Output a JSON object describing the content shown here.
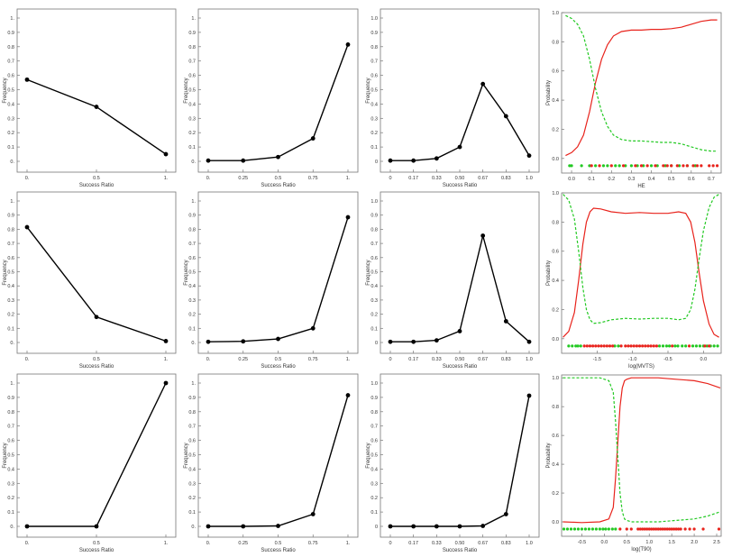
{
  "chart_data": [
    {
      "type": "line",
      "xlabel": "Success Ratio",
      "ylabel": "Frequency",
      "categories": [
        "0.",
        "0.5",
        "1."
      ],
      "values": [
        0.57,
        0.38,
        0.05
      ],
      "yticks": [
        "0.",
        "0.1",
        "0.2",
        "0.3",
        "0.4",
        "0.5",
        "0.6",
        "0.7",
        "0.8",
        "0.9",
        "1."
      ],
      "ylim": [
        0,
        1
      ]
    },
    {
      "type": "line",
      "xlabel": "Success Ratio",
      "ylabel": "Frequency",
      "categories": [
        "0.",
        "0.25",
        "0.5",
        "0.75",
        "1."
      ],
      "values": [
        0.005,
        0.005,
        0.03,
        0.16,
        0.815
      ],
      "yticks": [
        "0.",
        "0.1",
        "0.2",
        "0.3",
        "0.4",
        "0.5",
        "0.6",
        "0.7",
        "0.8",
        "0.9",
        "1."
      ],
      "ylim": [
        0,
        1
      ]
    },
    {
      "type": "line",
      "xlabel": "Success Ratio",
      "ylabel": "Frequency",
      "categories": [
        "0",
        "0.17",
        "0.33",
        "0.50",
        "0.67",
        "0.83",
        "1.0"
      ],
      "values": [
        0.005,
        0.005,
        0.02,
        0.1,
        0.54,
        0.315,
        0.04
      ],
      "yticks": [
        "0",
        "0.1",
        "0.2",
        "0.3",
        "0.4",
        "0.5",
        "0.6",
        "0.7",
        "0.8",
        "0.9",
        "1.0"
      ],
      "ylim": [
        0,
        1
      ]
    },
    {
      "type": "line",
      "xlabel": "HE",
      "ylabel": "Probability",
      "xlim": [
        -0.05,
        0.75
      ],
      "ylim": [
        -0.1,
        1.0
      ],
      "xticks": [
        0.0,
        0.1,
        0.2,
        0.3,
        0.4,
        0.5,
        0.6,
        0.7
      ],
      "xticklabels": [
        "0.0",
        "0.1",
        "0.2",
        "0.3",
        "0.4",
        "0.5",
        "0.6",
        "0.7"
      ],
      "yticks": [
        0.0,
        0.2,
        0.4,
        0.6,
        0.8,
        1.0
      ],
      "yticklabels": [
        "0.0",
        "0.2",
        "0.4",
        "0.6",
        "0.8",
        "1.0"
      ],
      "series": [
        {
          "style": "solid",
          "color": "#e8231c",
          "x": [
            -0.03,
            0.0,
            0.03,
            0.06,
            0.09,
            0.12,
            0.15,
            0.18,
            0.21,
            0.25,
            0.3,
            0.35,
            0.4,
            0.45,
            0.5,
            0.55,
            0.6,
            0.65,
            0.7,
            0.73
          ],
          "y": [
            0.02,
            0.04,
            0.08,
            0.16,
            0.32,
            0.52,
            0.68,
            0.78,
            0.84,
            0.87,
            0.88,
            0.88,
            0.885,
            0.885,
            0.89,
            0.9,
            0.92,
            0.94,
            0.95,
            0.95
          ]
        },
        {
          "style": "dashed",
          "color": "#22c922",
          "x": [
            -0.03,
            0.0,
            0.03,
            0.06,
            0.09,
            0.12,
            0.15,
            0.18,
            0.21,
            0.25,
            0.3,
            0.35,
            0.4,
            0.45,
            0.5,
            0.55,
            0.6,
            0.65,
            0.7,
            0.73
          ],
          "y": [
            0.98,
            0.96,
            0.92,
            0.84,
            0.68,
            0.48,
            0.32,
            0.22,
            0.16,
            0.13,
            0.12,
            0.12,
            0.115,
            0.11,
            0.11,
            0.1,
            0.08,
            0.06,
            0.05,
            0.05
          ]
        }
      ],
      "rug": {
        "y": -0.05,
        "green": [
          -0.01,
          0.0,
          0.05,
          0.09,
          0.12,
          0.16,
          0.18,
          0.22,
          0.24,
          0.27,
          0.3,
          0.33,
          0.36,
          0.4,
          0.43,
          0.47,
          0.5,
          0.54,
          0.58,
          0.62
        ],
        "red": [
          0.1,
          0.14,
          0.2,
          0.26,
          0.32,
          0.35,
          0.38,
          0.42,
          0.46,
          0.48,
          0.5,
          0.53,
          0.56,
          0.58,
          0.61,
          0.63,
          0.65,
          0.69,
          0.71,
          0.73
        ]
      }
    },
    {
      "type": "line",
      "xlabel": "Success Ratio",
      "ylabel": "Frequency",
      "categories": [
        "0.",
        "0.5",
        "1."
      ],
      "values": [
        0.815,
        0.18,
        0.01
      ],
      "yticks": [
        "0.",
        "0.1",
        "0.2",
        "0.3",
        "0.4",
        "0.5",
        "0.6",
        "0.7",
        "0.8",
        "0.9",
        "1."
      ],
      "ylim": [
        0,
        1
      ]
    },
    {
      "type": "line",
      "xlabel": "Success Ratio",
      "ylabel": "Frequency",
      "categories": [
        "0.",
        "0.25",
        "0.5",
        "0.75",
        "1."
      ],
      "values": [
        0.005,
        0.008,
        0.025,
        0.1,
        0.885
      ],
      "yticks": [
        "0.",
        "0.1",
        "0.2",
        "0.3",
        "0.4",
        "0.5",
        "0.6",
        "0.7",
        "0.8",
        "0.9",
        "1."
      ],
      "ylim": [
        0,
        1
      ]
    },
    {
      "type": "line",
      "xlabel": "Success Ratio",
      "ylabel": "Frequency",
      "categories": [
        "0",
        "0.17",
        "0.33",
        "0.50",
        "0.67",
        "0.83",
        "1.0"
      ],
      "values": [
        0.005,
        0.005,
        0.015,
        0.08,
        0.755,
        0.15,
        0.005
      ],
      "yticks": [
        "0",
        "0.1",
        "0.2",
        "0.3",
        "0.4",
        "0.5",
        "0.6",
        "0.7",
        "0.8",
        "0.9",
        "1.0"
      ],
      "ylim": [
        0,
        1
      ]
    },
    {
      "type": "line",
      "xlabel": "log(MVTS)",
      "ylabel": "Probability",
      "xlim": [
        -2.0,
        0.25
      ],
      "ylim": [
        -0.1,
        1.0
      ],
      "xticks": [
        -1.5,
        -1.0,
        -0.5,
        0.0
      ],
      "xticklabels": [
        "-1.5",
        "-1.0",
        "-0.5",
        "0.0"
      ],
      "yticks": [
        0.0,
        0.2,
        0.4,
        0.6,
        0.8,
        1.0
      ],
      "yticklabels": [
        "0.0",
        "0.2",
        "0.4",
        "0.6",
        "0.8",
        "1.0"
      ],
      "series": [
        {
          "style": "solid",
          "color": "#e8231c",
          "x": [
            -1.98,
            -1.9,
            -1.82,
            -1.76,
            -1.7,
            -1.65,
            -1.6,
            -1.55,
            -1.45,
            -1.3,
            -1.1,
            -0.9,
            -0.7,
            -0.5,
            -0.35,
            -0.25,
            -0.18,
            -0.12,
            -0.06,
            0.0,
            0.08,
            0.15,
            0.22
          ],
          "y": [
            0.01,
            0.05,
            0.18,
            0.4,
            0.65,
            0.8,
            0.87,
            0.895,
            0.89,
            0.87,
            0.86,
            0.865,
            0.86,
            0.86,
            0.87,
            0.86,
            0.8,
            0.66,
            0.45,
            0.26,
            0.1,
            0.03,
            0.01
          ]
        },
        {
          "style": "dashed",
          "color": "#22c922",
          "x": [
            -1.98,
            -1.9,
            -1.82,
            -1.76,
            -1.7,
            -1.65,
            -1.6,
            -1.55,
            -1.45,
            -1.3,
            -1.1,
            -0.9,
            -0.7,
            -0.5,
            -0.35,
            -0.25,
            -0.18,
            -0.12,
            -0.06,
            0.0,
            0.08,
            0.15,
            0.22
          ],
          "y": [
            0.99,
            0.95,
            0.82,
            0.6,
            0.35,
            0.2,
            0.13,
            0.105,
            0.11,
            0.13,
            0.14,
            0.135,
            0.14,
            0.14,
            0.13,
            0.14,
            0.2,
            0.34,
            0.55,
            0.74,
            0.9,
            0.97,
            0.99
          ]
        }
      ],
      "rug": {
        "y": -0.05,
        "green": [
          -1.9,
          -1.85,
          -1.8,
          -1.77,
          -1.73,
          -1.25,
          -1.2,
          -0.62,
          -0.57,
          -0.52,
          -0.48,
          -0.4,
          -0.36,
          -0.3,
          -0.25,
          -0.15,
          -0.1,
          -0.05,
          0.0,
          0.05,
          0.1,
          0.15,
          0.2
        ],
        "red": [
          -1.68,
          -1.64,
          -1.6,
          -1.56,
          -1.52,
          -1.48,
          -1.44,
          -1.4,
          -1.36,
          -1.32,
          -1.28,
          -1.16,
          -1.1,
          -1.06,
          -1.02,
          -0.98,
          -0.94,
          -0.9,
          -0.86,
          -0.82,
          -0.78,
          -0.74,
          -0.7,
          -0.66,
          -0.44,
          -0.2,
          0.02,
          0.08
        ]
      }
    },
    {
      "type": "line",
      "xlabel": "Success Ratio",
      "ylabel": "Frequency",
      "categories": [
        "0.",
        "0.5",
        "1."
      ],
      "values": [
        0.0,
        0.0,
        1.0
      ],
      "yticks": [
        "0.",
        "0.1",
        "0.2",
        "0.3",
        "0.4",
        "0.5",
        "0.6",
        "0.7",
        "0.8",
        "0.9",
        "1."
      ],
      "ylim": [
        0,
        1
      ]
    },
    {
      "type": "line",
      "xlabel": "Success Ratio",
      "ylabel": "Frequency",
      "categories": [
        "0.",
        "0.25",
        "0.5",
        "0.75",
        "1."
      ],
      "values": [
        0.0,
        0.0,
        0.003,
        0.085,
        0.915
      ],
      "yticks": [
        "0.",
        "0.1",
        "0.2",
        "0.3",
        "0.4",
        "0.5",
        "0.6",
        "0.7",
        "0.8",
        "0.9",
        "1."
      ],
      "ylim": [
        0,
        1
      ]
    },
    {
      "type": "line",
      "xlabel": "Success Ratio",
      "ylabel": "Frequency",
      "categories": [
        "0",
        "0.17",
        "0.33",
        "0.50",
        "0.67",
        "0.83",
        "1.0"
      ],
      "values": [
        0.0,
        0.0,
        0.0,
        0.0,
        0.003,
        0.085,
        0.912
      ],
      "yticks": [
        "0",
        "0.1",
        "0.2",
        "0.3",
        "0.4",
        "0.5",
        "0.6",
        "0.7",
        "0.8",
        "0.9",
        "1.0"
      ],
      "ylim": [
        0,
        1
      ]
    },
    {
      "type": "line",
      "xlabel": "log(T90)",
      "ylabel": "Probability",
      "xlim": [
        -0.95,
        2.6
      ],
      "ylim": [
        -0.1,
        1.02
      ],
      "xticks": [
        -0.5,
        0.0,
        0.5,
        1.0,
        1.5,
        2.0,
        2.5
      ],
      "xticklabels": [
        "-0.5",
        "0.0",
        "0.5",
        "1.0",
        "1.5",
        "2.0",
        "2.5"
      ],
      "yticks": [
        0.0,
        0.2,
        0.4,
        0.6,
        0.8,
        1.0
      ],
      "yticklabels": [
        "0.0",
        "0.2",
        "0.4",
        "0.6",
        "0.8",
        "1.0"
      ],
      "series": [
        {
          "style": "solid",
          "color": "#e8231c",
          "x": [
            -0.92,
            -0.5,
            -0.1,
            0.1,
            0.2,
            0.25,
            0.3,
            0.35,
            0.4,
            0.45,
            0.5,
            0.6,
            0.8,
            1.2,
            1.6,
            2.0,
            2.3,
            2.58
          ],
          "y": [
            0.0,
            -0.005,
            0.0,
            0.02,
            0.1,
            0.3,
            0.55,
            0.8,
            0.93,
            0.98,
            0.99,
            1.0,
            1.0,
            1.0,
            0.99,
            0.98,
            0.96,
            0.93
          ]
        },
        {
          "style": "dashed",
          "color": "#22c922",
          "x": [
            -0.92,
            -0.5,
            -0.1,
            0.1,
            0.2,
            0.25,
            0.3,
            0.35,
            0.4,
            0.45,
            0.5,
            0.6,
            0.8,
            1.2,
            1.6,
            2.0,
            2.3,
            2.58
          ],
          "y": [
            1.0,
            1.0,
            1.0,
            0.98,
            0.9,
            0.7,
            0.45,
            0.2,
            0.07,
            0.02,
            0.01,
            0.0,
            0.0,
            0.0,
            0.01,
            0.02,
            0.04,
            0.07
          ]
        }
      ],
      "rug": {
        "y": -0.05,
        "green": [
          -0.9,
          -0.82,
          -0.74,
          -0.66,
          -0.58,
          -0.5,
          -0.42,
          -0.34,
          -0.26,
          -0.18,
          -0.1,
          -0.03,
          0.03,
          0.1,
          0.18,
          0.25
        ],
        "red": [
          0.35,
          0.5,
          0.6,
          0.75,
          0.8,
          0.85,
          0.9,
          0.95,
          1.0,
          1.05,
          1.1,
          1.15,
          1.2,
          1.25,
          1.3,
          1.35,
          1.4,
          1.45,
          1.5,
          1.55,
          1.6,
          1.65,
          1.7,
          1.8,
          1.9,
          2.0,
          2.2,
          2.55
        ]
      }
    }
  ]
}
